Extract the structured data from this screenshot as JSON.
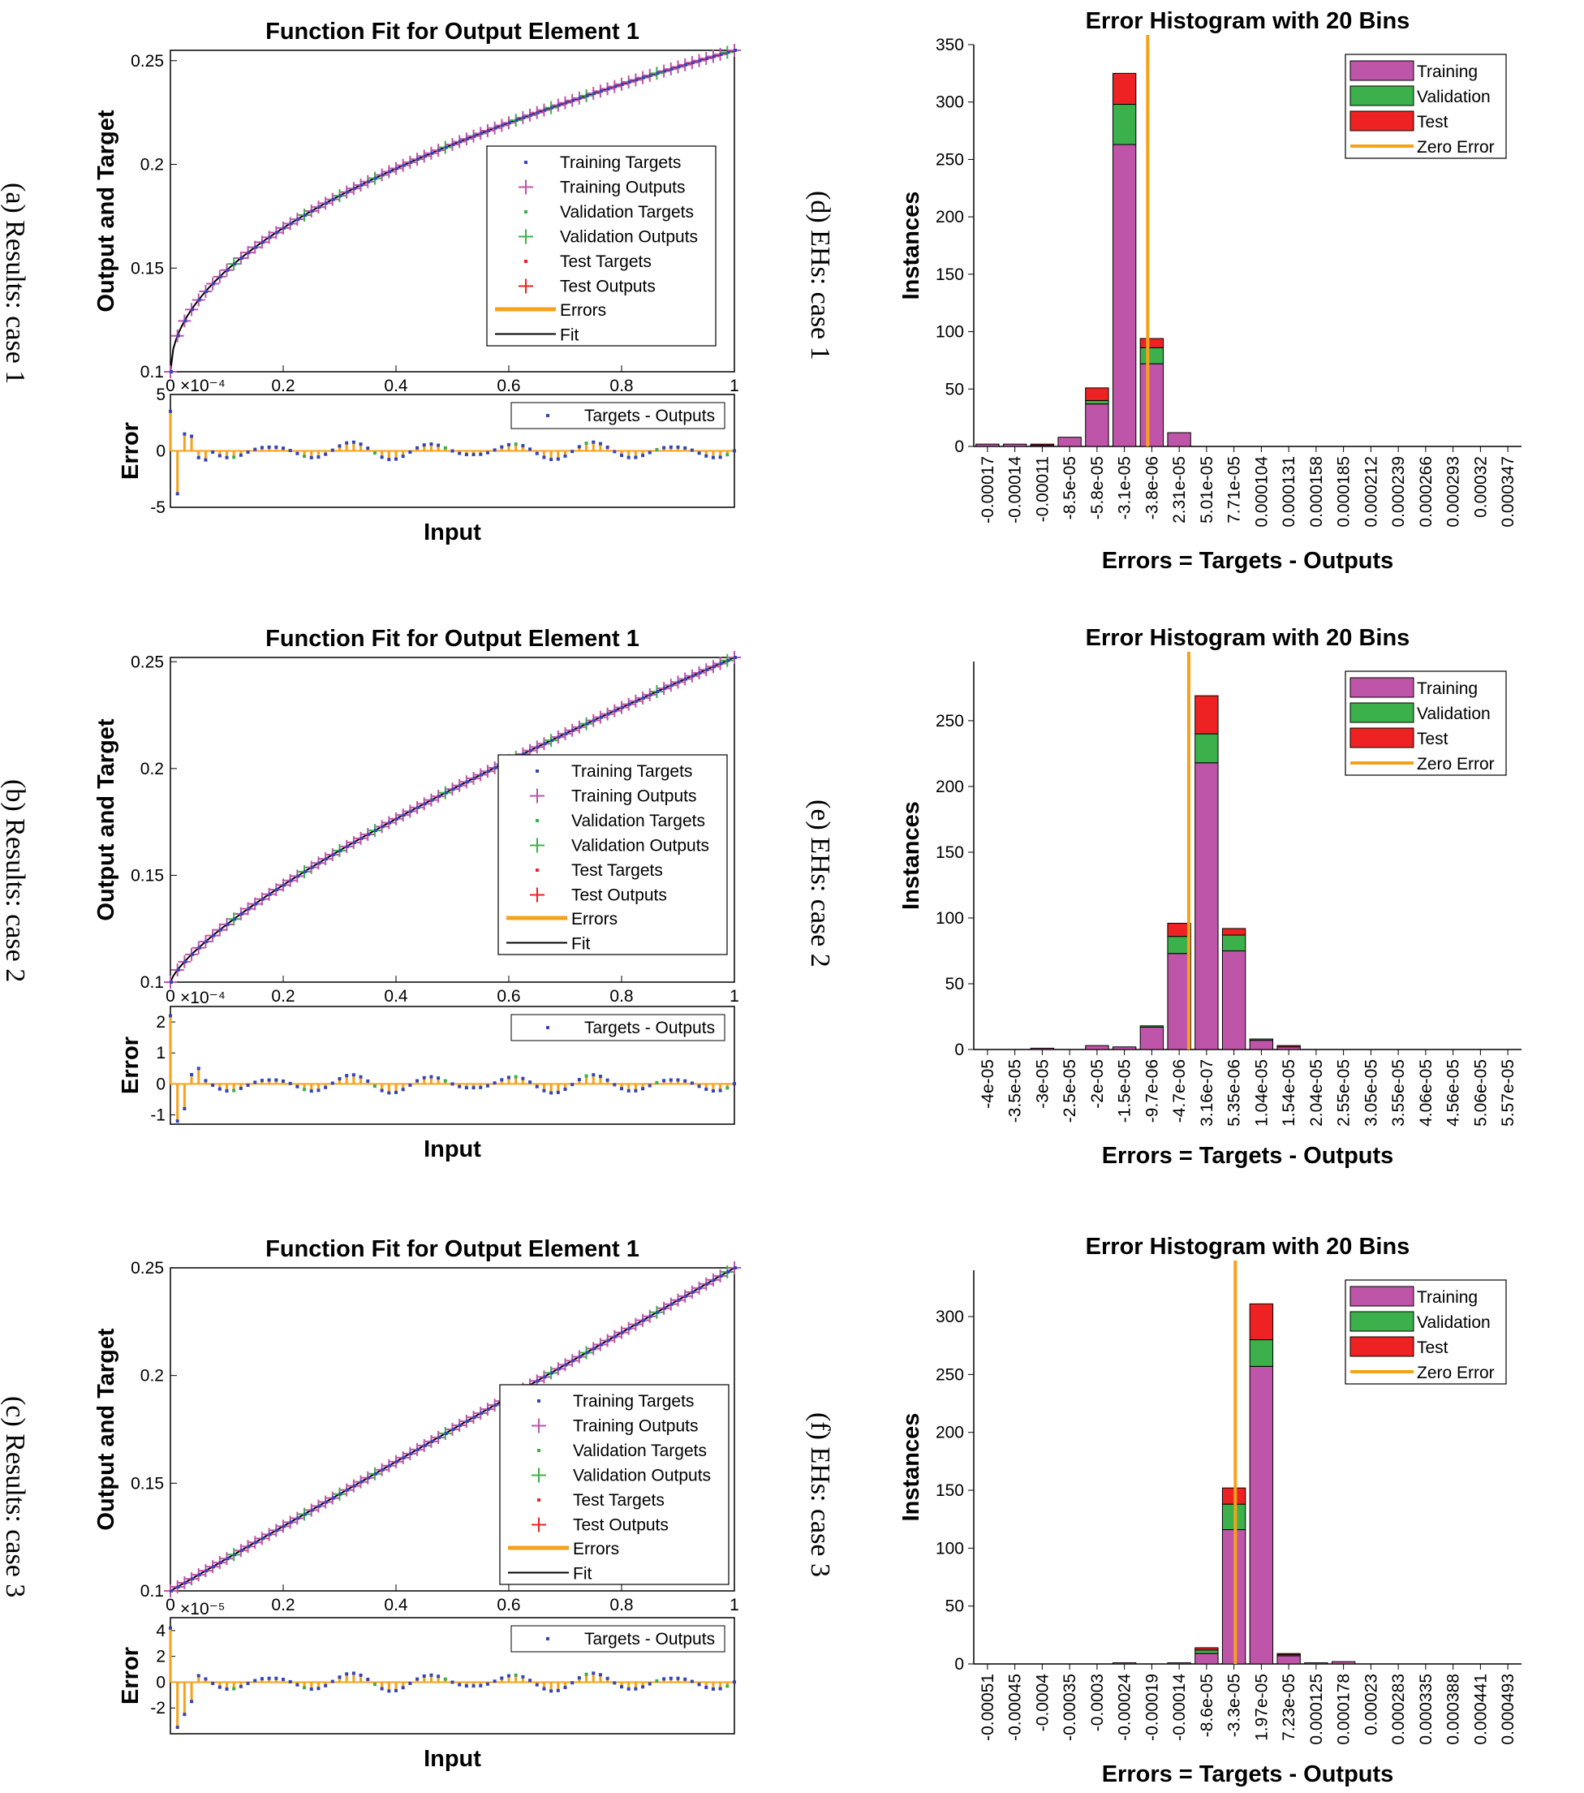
{
  "captions": {
    "a": "(a) Results: case 1",
    "b": "(b) Results: case 2",
    "c": "(c) Results: case 3",
    "d": "(d) EHs: case 1",
    "e": "(e) EHs: case 2",
    "f": "(f) EHs: case 3"
  },
  "colors": {
    "training": "#bf55a8",
    "validation": "#3cb04a",
    "test": "#ee2222",
    "zero_error": "#f7a11a",
    "target_dot": "#3344bb"
  },
  "chart_data": [
    {
      "type": "line",
      "panel": "a",
      "title": "Function Fit for Output Element 1",
      "xlabel": "Input",
      "ylabel": "Output and Target",
      "xlim": [
        0,
        1
      ],
      "ylim": [
        0.1,
        0.255
      ],
      "yticks": [
        "0.1",
        "0.15",
        "0.2",
        "0.25"
      ],
      "xticks": [
        "0",
        "0.2",
        "0.4",
        "0.6",
        "0.8",
        "1"
      ],
      "curve": "sqrt",
      "legend": [
        "Training Targets",
        "Training Outputs",
        "Validation Targets",
        "Validation Outputs",
        "Test Targets",
        "Test Outputs",
        "Errors",
        "Fit"
      ],
      "legend_position": "middle-right",
      "error_panel": {
        "ylabel": "Error",
        "scale": "×10⁻⁴",
        "ylim": [
          -5,
          5
        ],
        "yticks": [
          "-5",
          "0",
          "5"
        ],
        "legend": "Targets - Outputs",
        "first_errors": [
          3.5,
          -3.8,
          1.5,
          1.3,
          -0.6,
          -0.8
        ]
      }
    },
    {
      "type": "bar",
      "panel": "d",
      "title": "Error Histogram with 20 Bins",
      "xlabel": "Errors = Targets - Outputs",
      "ylabel": "Instances",
      "ylim": [
        0,
        350
      ],
      "yticks": [
        "0",
        "50",
        "100",
        "150",
        "200",
        "250",
        "300",
        "350"
      ],
      "categories": [
        "-0.00017",
        "-0.00014",
        "-0.00011",
        "-8.5e-05",
        "-5.8e-05",
        "-3.1e-05",
        "-3.8e-06",
        "2.31e-05",
        "5.01e-05",
        "7.71e-05",
        "0.000104",
        "0.000131",
        "0.000158",
        "0.000185",
        "0.000212",
        "0.000239",
        "0.000266",
        "0.000293",
        "0.00032",
        "0.000347"
      ],
      "series": [
        {
          "name": "Training",
          "values": [
            2,
            2,
            1,
            8,
            37,
            263,
            72,
            12,
            0,
            0,
            0,
            0,
            0,
            0,
            0,
            0,
            0,
            0,
            0,
            0
          ]
        },
        {
          "name": "Validation",
          "values": [
            0,
            0,
            0,
            0,
            3,
            35,
            14,
            0,
            0,
            0,
            0,
            0,
            0,
            0,
            0,
            0,
            0,
            0,
            0,
            0
          ]
        },
        {
          "name": "Test",
          "values": [
            0,
            0,
            1,
            0,
            11,
            27,
            8,
            0,
            0,
            0,
            0,
            0,
            0,
            0,
            0,
            0,
            0,
            0,
            0,
            0
          ]
        }
      ],
      "zero_error_bin": 6.35,
      "legend": [
        "Training",
        "Validation",
        "Test",
        "Zero Error"
      ],
      "legend_position": "top-right"
    },
    {
      "type": "line",
      "panel": "b",
      "title": "Function Fit for Output Element 1",
      "xlabel": "Input",
      "ylabel": "Output and Target",
      "xlim": [
        0,
        1
      ],
      "ylim": [
        0.1,
        0.252
      ],
      "yticks": [
        "0.1",
        "0.15",
        "0.2",
        "0.25"
      ],
      "xticks": [
        "0",
        "0.2",
        "0.4",
        "0.6",
        "0.8",
        "1"
      ],
      "curve": "pow075",
      "legend": [
        "Training Targets",
        "Training Outputs",
        "Validation Targets",
        "Validation Outputs",
        "Test Targets",
        "Test Outputs",
        "Errors",
        "Fit"
      ],
      "legend_position": "middle-right",
      "error_panel": {
        "ylabel": "Error",
        "scale": "×10⁻⁴",
        "ylim": [
          -1.3,
          2.5
        ],
        "yticks": [
          "-1",
          "0",
          "1",
          "2"
        ],
        "legend": "Targets - Outputs",
        "first_errors": [
          2.2,
          -1.2,
          -0.8,
          0.3,
          0.5
        ]
      }
    },
    {
      "type": "bar",
      "panel": "e",
      "title": "Error Histogram with 20 Bins",
      "xlabel": "Errors = Targets - Outputs",
      "ylabel": "Instances",
      "ylim": [
        0,
        295
      ],
      "yticks": [
        "0",
        "50",
        "100",
        "150",
        "200",
        "250"
      ],
      "categories": [
        "-4e-05",
        "-3.5e-05",
        "-3e-05",
        "-2.5e-05",
        "-2e-05",
        "-1.5e-05",
        "-9.7e-06",
        "-4.7e-06",
        "3.16e-07",
        "5.35e-06",
        "1.04e-05",
        "1.54e-05",
        "2.04e-05",
        "2.55e-05",
        "3.05e-05",
        "3.55e-05",
        "4.06e-05",
        "4.56e-05",
        "5.06e-05",
        "5.57e-05"
      ],
      "series": [
        {
          "name": "Training",
          "values": [
            0,
            0,
            1,
            0,
            3,
            2,
            17,
            73,
            218,
            75,
            7,
            2,
            0,
            0,
            0,
            0,
            0,
            0,
            0,
            0
          ]
        },
        {
          "name": "Validation",
          "values": [
            0,
            0,
            0,
            0,
            0,
            0,
            1,
            13,
            22,
            12,
            1,
            0,
            0,
            0,
            0,
            0,
            0,
            0,
            0,
            0
          ]
        },
        {
          "name": "Test",
          "values": [
            0,
            0,
            0,
            0,
            0,
            0,
            0,
            10,
            29,
            5,
            0,
            1,
            0,
            0,
            0,
            0,
            0,
            0,
            0,
            0
          ]
        }
      ],
      "zero_error_bin": 7.85,
      "legend": [
        "Training",
        "Validation",
        "Test",
        "Zero Error"
      ],
      "legend_position": "top-right"
    },
    {
      "type": "line",
      "panel": "c",
      "title": "Function Fit for Output Element 1",
      "xlabel": "Input",
      "ylabel": "Output and Target",
      "xlim": [
        0,
        1
      ],
      "ylim": [
        0.1,
        0.25
      ],
      "yticks": [
        "0.1",
        "0.15",
        "0.2",
        "0.25"
      ],
      "xticks": [
        "0",
        "0.2",
        "0.4",
        "0.6",
        "0.8",
        "1"
      ],
      "curve": "linear",
      "legend": [
        "Training Targets",
        "Training Outputs",
        "Validation Targets",
        "Validation Outputs",
        "Test Targets",
        "Test Outputs",
        "Errors",
        "Fit"
      ],
      "legend_position": "middle-right",
      "error_panel": {
        "ylabel": "Error",
        "scale": "×10⁻⁵",
        "ylim": [
          -4,
          5
        ],
        "yticks": [
          "-2",
          "0",
          "2",
          "4"
        ],
        "legend": "Targets - Outputs",
        "first_errors": [
          4.2,
          -3.5,
          -2.5,
          -1.5,
          0.5
        ]
      }
    },
    {
      "type": "bar",
      "panel": "f",
      "title": "Error Histogram with 20 Bins",
      "xlabel": "Errors = Targets - Outputs",
      "ylabel": "Instances",
      "ylim": [
        0,
        340
      ],
      "yticks": [
        "0",
        "50",
        "100",
        "150",
        "200",
        "250",
        "300"
      ],
      "categories": [
        "-0.00051",
        "-0.00045",
        "-0.0004",
        "-0.00035",
        "-0.0003",
        "-0.00024",
        "-0.00019",
        "-0.00014",
        "-8.6e-05",
        "-3.3e-05",
        "1.97e-05",
        "7.23e-05",
        "0.000125",
        "0.000178",
        "0.00023",
        "0.000283",
        "0.000335",
        "0.000388",
        "0.000441",
        "0.000493"
      ],
      "series": [
        {
          "name": "Training",
          "values": [
            0,
            0,
            0,
            0,
            0,
            1,
            0,
            1,
            9,
            116,
            257,
            7,
            1,
            2,
            0,
            0,
            0,
            0,
            0,
            0
          ]
        },
        {
          "name": "Validation",
          "values": [
            0,
            0,
            0,
            0,
            0,
            0,
            0,
            0,
            3,
            22,
            23,
            1,
            0,
            0,
            0,
            0,
            0,
            0,
            0,
            0
          ]
        },
        {
          "name": "Test",
          "values": [
            0,
            0,
            0,
            0,
            0,
            0,
            0,
            0,
            2,
            14,
            31,
            1,
            0,
            0,
            0,
            0,
            0,
            0,
            0,
            0
          ]
        }
      ],
      "zero_error_bin": 9.55,
      "legend": [
        "Training",
        "Validation",
        "Test",
        "Zero Error"
      ],
      "legend_position": "top-right"
    }
  ]
}
